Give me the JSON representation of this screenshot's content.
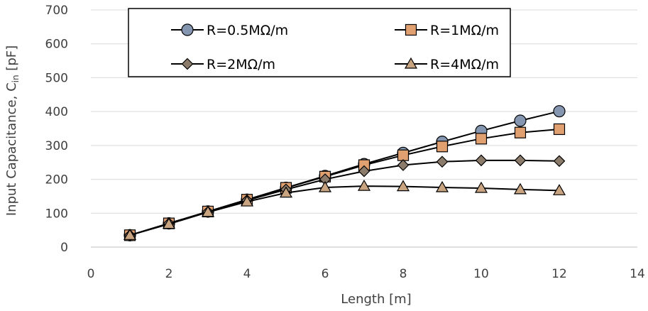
{
  "chart_data": {
    "type": "line",
    "title": "",
    "xlabel": "Length [m]",
    "ylabel_main": "Input Capacitance, C",
    "ylabel_sub": "in",
    "ylabel_unit": " [pF]",
    "xlim": [
      0,
      14
    ],
    "ylim": [
      0,
      700
    ],
    "xticks": [
      0,
      2,
      4,
      6,
      8,
      10,
      12,
      14
    ],
    "yticks": [
      0,
      100,
      200,
      300,
      400,
      500,
      600,
      700
    ],
    "grid": "horizontal",
    "legend_position": "top",
    "x": [
      1,
      2,
      3,
      4,
      5,
      6,
      7,
      8,
      9,
      10,
      11,
      12
    ],
    "series": [
      {
        "name": "R=0.5MΩ/m",
        "marker": "circle",
        "color": "#8496B0",
        "values": [
          35,
          70,
          105,
          140,
          175,
          210,
          245,
          278,
          311,
          343,
          373,
          401
        ]
      },
      {
        "name": "R=1MΩ/m",
        "marker": "square",
        "color": "#E0A070",
        "values": [
          35,
          70,
          105,
          140,
          175,
          208,
          242,
          271,
          297,
          320,
          338,
          348
        ]
      },
      {
        "name": "R=2MΩ/m",
        "marker": "diamond",
        "color": "#8B7B6B",
        "values": [
          35,
          70,
          104,
          138,
          170,
          200,
          224,
          242,
          252,
          256,
          256,
          254
        ]
      },
      {
        "name": "R=4MΩ/m",
        "marker": "triangle",
        "color": "#C8A480",
        "values": [
          35,
          68,
          103,
          134,
          160,
          176,
          180,
          179,
          176,
          174,
          170,
          167
        ]
      }
    ]
  }
}
